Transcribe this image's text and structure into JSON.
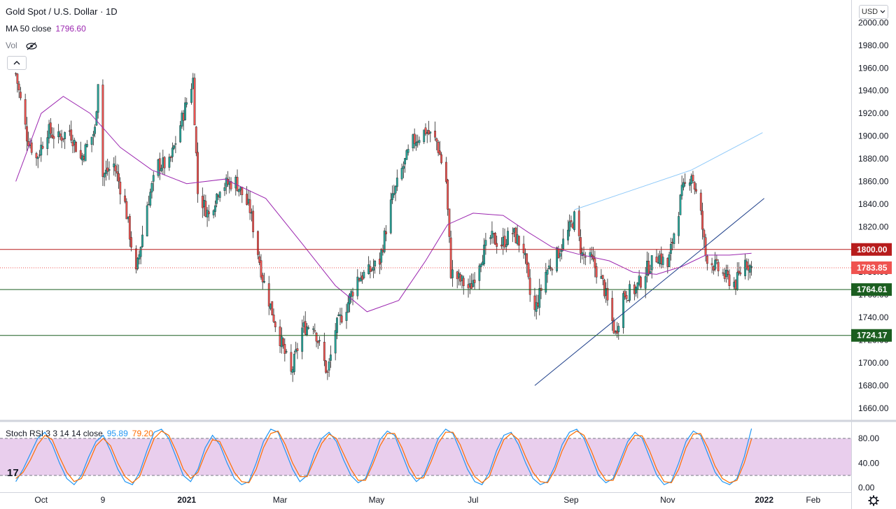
{
  "header": {
    "title": "Gold Spot / U.S. Dollar · 1D",
    "ma_label": "MA 50 close",
    "ma_value": "1796.60",
    "vol_label": "Vol",
    "currency_button": "USD",
    "stoch_label": "Stoch RSI 3 3 14 14 close",
    "stoch_k": "95.89",
    "stoch_d": "79.20",
    "tv_logo": "17"
  },
  "colors": {
    "up": "#26a69a",
    "down": "#ef5350",
    "ma": "#9c27b0",
    "red_level": "#b71c1c",
    "green_level": "#1b5e20",
    "trend_dark": "#1e3f8a",
    "trend_light": "#90caf9",
    "stoch_k": "#2196f3",
    "stoch_d": "#ff6d00",
    "stoch_band": "#e1bee7"
  },
  "chart_data": [
    {
      "type": "candlestick",
      "title": "Gold Spot / U.S. Dollar · 1D",
      "ylim": [
        1650,
        2020
      ],
      "y_ticks": [
        1660,
        1680,
        1700,
        1720,
        1740,
        1760,
        1780,
        1800,
        1820,
        1840,
        1860,
        1880,
        1900,
        1920,
        1940,
        1960,
        1980,
        2000
      ],
      "x_ticks": [
        {
          "label": "Oct",
          "date": "2020-10-01"
        },
        {
          "label": "9",
          "date": "2020-11-09"
        },
        {
          "label": "2021",
          "date": "2021-01-01"
        },
        {
          "label": "Mar",
          "date": "2021-03-01"
        },
        {
          "label": "May",
          "date": "2021-05-01"
        },
        {
          "label": "Jul",
          "date": "2021-07-01"
        },
        {
          "label": "Sep",
          "date": "2021-09-01"
        },
        {
          "label": "Nov",
          "date": "2021-11-01"
        },
        {
          "label": "2022",
          "date": "2022-01-01"
        },
        {
          "label": "Feb",
          "date": "2022-02-01"
        }
      ],
      "close_path": [
        [
          "2020-09-15",
          1955
        ],
        [
          "2020-09-22",
          1900
        ],
        [
          "2020-09-28",
          1880
        ],
        [
          "2020-10-05",
          1905
        ],
        [
          "2020-10-12",
          1898
        ],
        [
          "2020-10-19",
          1905
        ],
        [
          "2020-10-26",
          1880
        ],
        [
          "2020-11-04",
          1905
        ],
        [
          "2020-11-06",
          1950
        ],
        [
          "2020-11-09",
          1865
        ],
        [
          "2020-11-16",
          1875
        ],
        [
          "2020-11-23",
          1840
        ],
        [
          "2020-11-30",
          1778
        ],
        [
          "2020-12-07",
          1840
        ],
        [
          "2020-12-14",
          1875
        ],
        [
          "2020-12-21",
          1875
        ],
        [
          "2021-01-05",
          1950
        ],
        [
          "2021-01-08",
          1850
        ],
        [
          "2021-01-15",
          1830
        ],
        [
          "2021-01-22",
          1856
        ],
        [
          "2021-02-01",
          1860
        ],
        [
          "2021-02-10",
          1835
        ],
        [
          "2021-02-18",
          1775
        ],
        [
          "2021-02-26",
          1735
        ],
        [
          "2021-03-08",
          1690
        ],
        [
          "2021-03-15",
          1730
        ],
        [
          "2021-03-22",
          1735
        ],
        [
          "2021-03-31",
          1690
        ],
        [
          "2021-04-05",
          1730
        ],
        [
          "2021-04-12",
          1750
        ],
        [
          "2021-04-19",
          1775
        ],
        [
          "2021-04-26",
          1780
        ],
        [
          "2021-05-03",
          1790
        ],
        [
          "2021-05-10",
          1840
        ],
        [
          "2021-05-17",
          1870
        ],
        [
          "2021-05-24",
          1895
        ],
        [
          "2021-06-01",
          1905
        ],
        [
          "2021-06-08",
          1895
        ],
        [
          "2021-06-14",
          1860
        ],
        [
          "2021-06-17",
          1780
        ],
        [
          "2021-06-21",
          1775
        ],
        [
          "2021-06-29",
          1765
        ],
        [
          "2021-07-05",
          1790
        ],
        [
          "2021-07-12",
          1810
        ],
        [
          "2021-07-19",
          1805
        ],
        [
          "2021-07-26",
          1815
        ],
        [
          "2021-08-02",
          1800
        ],
        [
          "2021-08-06",
          1760
        ],
        [
          "2021-08-09",
          1745
        ],
        [
          "2021-08-16",
          1780
        ],
        [
          "2021-08-23",
          1795
        ],
        [
          "2021-08-30",
          1815
        ],
        [
          "2021-09-03",
          1828
        ],
        [
          "2021-09-08",
          1795
        ],
        [
          "2021-09-14",
          1790
        ],
        [
          "2021-09-21",
          1770
        ],
        [
          "2021-09-29",
          1725
        ],
        [
          "2021-10-04",
          1760
        ],
        [
          "2021-10-12",
          1765
        ],
        [
          "2021-10-19",
          1783
        ],
        [
          "2021-10-26",
          1795
        ],
        [
          "2021-11-01",
          1785
        ],
        [
          "2021-11-05",
          1815
        ],
        [
          "2021-11-10",
          1850
        ],
        [
          "2021-11-16",
          1868
        ],
        [
          "2021-11-22",
          1830
        ],
        [
          "2021-11-25",
          1795
        ],
        [
          "2021-12-01",
          1785
        ],
        [
          "2021-12-08",
          1775
        ],
        [
          "2021-12-14",
          1770
        ],
        [
          "2021-12-20",
          1790
        ],
        [
          "2021-12-24",
          1783.85
        ]
      ],
      "ma50_path": [
        [
          "2020-09-15",
          1860
        ],
        [
          "2020-10-01",
          1920
        ],
        [
          "2020-10-15",
          1935
        ],
        [
          "2020-11-01",
          1920
        ],
        [
          "2020-11-20",
          1890
        ],
        [
          "2020-12-10",
          1870
        ],
        [
          "2021-01-01",
          1858
        ],
        [
          "2021-01-25",
          1862
        ],
        [
          "2021-02-20",
          1845
        ],
        [
          "2021-03-15",
          1805
        ],
        [
          "2021-04-05",
          1768
        ],
        [
          "2021-04-25",
          1745
        ],
        [
          "2021-05-15",
          1755
        ],
        [
          "2021-06-01",
          1790
        ],
        [
          "2021-06-15",
          1822
        ],
        [
          "2021-07-01",
          1832
        ],
        [
          "2021-07-20",
          1830
        ],
        [
          "2021-08-05",
          1815
        ],
        [
          "2021-08-20",
          1802
        ],
        [
          "2021-09-05",
          1796
        ],
        [
          "2021-09-25",
          1790
        ],
        [
          "2021-10-10",
          1780
        ],
        [
          "2021-10-25",
          1778
        ],
        [
          "2021-11-10",
          1785
        ],
        [
          "2021-11-25",
          1795
        ],
        [
          "2021-12-10",
          1795
        ],
        [
          "2021-12-24",
          1796.6
        ]
      ],
      "levels": [
        {
          "label": "1800.00",
          "value": 1800.0,
          "color": "#b71c1c"
        },
        {
          "label": "1764.61",
          "value": 1764.61,
          "color": "#1b5e20"
        },
        {
          "label": "1724.17",
          "value": 1724.17,
          "color": "#1b5e20"
        }
      ],
      "current_price": {
        "label": "1783.85",
        "value": 1783.85
      },
      "trendlines": [
        {
          "from": [
            "2021-08-09",
            1680
          ],
          "to": [
            "2022-01-01",
            1845
          ],
          "style": "dark"
        },
        {
          "from": [
            "2021-09-03",
            1835
          ],
          "to": [
            "2021-11-16",
            1870
          ],
          "style": "light"
        },
        {
          "from": [
            "2021-11-16",
            1870
          ],
          "to": [
            "2021-12-31",
            1903
          ],
          "style": "light"
        }
      ],
      "legend": "top-left",
      "grid": false
    },
    {
      "type": "line",
      "title": "Stoch RSI 3 3 14 14 close",
      "ylim": [
        -5,
        105
      ],
      "y_ticks": [
        {
          "label": "80.00",
          "value": 80
        },
        {
          "label": "40.00",
          "value": 40
        },
        {
          "label": "0.00",
          "value": 0
        }
      ],
      "band": [
        20,
        80
      ],
      "series": [
        {
          "name": "K",
          "last": 95.89,
          "values": [
            10,
            30,
            55,
            80,
            90,
            70,
            40,
            15,
            5,
            20,
            50,
            75,
            85,
            60,
            30,
            10,
            5,
            25,
            60,
            90,
            95,
            80,
            50,
            20,
            10,
            30,
            65,
            85,
            70,
            40,
            15,
            5,
            10,
            40,
            75,
            95,
            90,
            60,
            30,
            10,
            20,
            55,
            80,
            90,
            75,
            45,
            20,
            8,
            15,
            45,
            78,
            92,
            85,
            55,
            25,
            10,
            20,
            50,
            80,
            95,
            88,
            60,
            30,
            10,
            5,
            25,
            60,
            85,
            90,
            70,
            40,
            15,
            5,
            10,
            35,
            70,
            90,
            95,
            80,
            50,
            20,
            8,
            15,
            45,
            75,
            90,
            80,
            50,
            20,
            5,
            10,
            40,
            75,
            92,
            85,
            55,
            25,
            10,
            5,
            15,
            50,
            95.89
          ]
        },
        {
          "name": "D",
          "last": 79.2,
          "values": [
            15,
            25,
            45,
            70,
            85,
            78,
            50,
            25,
            10,
            15,
            40,
            68,
            80,
            68,
            40,
            18,
            8,
            18,
            50,
            80,
            92,
            85,
            60,
            30,
            15,
            25,
            55,
            78,
            75,
            50,
            25,
            10,
            8,
            30,
            65,
            88,
            92,
            70,
            40,
            18,
            18,
            45,
            72,
            87,
            80,
            55,
            30,
            12,
            12,
            38,
            68,
            88,
            88,
            65,
            35,
            15,
            16,
            42,
            72,
            90,
            90,
            70,
            40,
            18,
            8,
            18,
            50,
            78,
            88,
            78,
            50,
            25,
            10,
            8,
            28,
            60,
            84,
            92,
            85,
            60,
            30,
            12,
            12,
            38,
            68,
            85,
            84,
            60,
            30,
            10,
            8,
            30,
            65,
            87,
            88,
            65,
            35,
            15,
            8,
            12,
            40,
            79.2
          ]
        }
      ]
    }
  ]
}
